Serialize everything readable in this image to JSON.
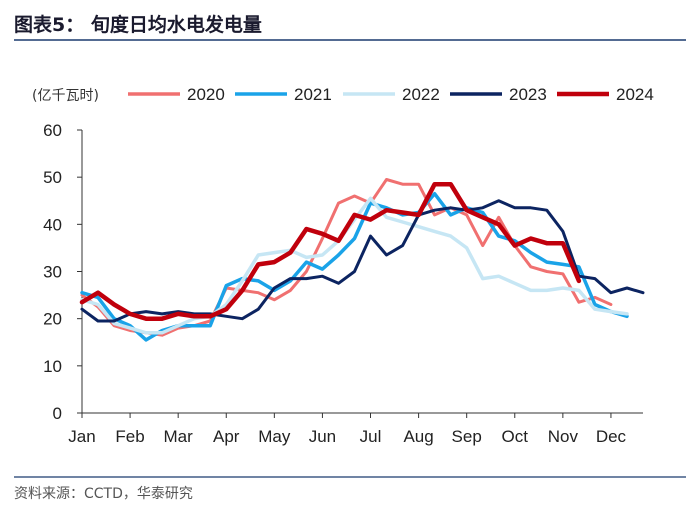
{
  "header": {
    "title": "图表5：  旬度日均水电发电量"
  },
  "source": "资料来源：CCTD，华泰研究",
  "chart_data": {
    "type": "line",
    "unit_label": "(亿千瓦时)",
    "ylim": [
      0,
      60
    ],
    "yticks": [
      "0",
      "10",
      "20",
      "30",
      "40",
      "50",
      "60"
    ],
    "month_labels": [
      "Jan",
      "Feb",
      "Mar",
      "Apr",
      "May",
      "Jun",
      "Jul",
      "Aug",
      "Sep",
      "Oct",
      "Nov",
      "Dec"
    ],
    "x_count": 36,
    "series": [
      {
        "name": "2020",
        "color": "#f07070",
        "width": 3,
        "values": [
          25.0,
          22.5,
          18.5,
          17.5,
          17.0,
          16.5,
          18.0,
          18.5,
          19.5,
          26.5,
          26.0,
          25.5,
          24.0,
          26.0,
          30.0,
          37.0,
          44.5,
          46.0,
          44.5,
          49.5,
          48.5,
          48.5,
          42.0,
          43.5,
          42.0,
          35.5,
          41.5,
          35.5,
          31.0,
          30.0,
          29.5,
          23.5,
          24.5,
          23.0
        ]
      },
      {
        "name": "2021",
        "color": "#1aa3e8",
        "width": 3.5,
        "values": [
          25.5,
          24.5,
          20.0,
          18.5,
          15.5,
          17.5,
          18.5,
          18.5,
          18.5,
          27.0,
          28.5,
          28.0,
          26.0,
          28.0,
          32.0,
          30.5,
          33.5,
          37.0,
          44.5,
          43.5,
          42.0,
          42.5,
          46.5,
          42.0,
          43.5,
          42.5,
          37.5,
          36.5,
          34.0,
          32.0,
          31.5,
          31.0,
          23.0,
          21.5,
          20.5
        ]
      },
      {
        "name": "2022",
        "color": "#c6e6f4",
        "width": 3.5,
        "values": [
          24.0,
          23.0,
          19.0,
          18.0,
          17.0,
          17.0,
          18.5,
          20.0,
          20.5,
          23.0,
          28.0,
          33.5,
          34.0,
          34.5,
          33.0,
          33.5,
          36.5,
          41.0,
          45.5,
          41.5,
          40.5,
          39.5,
          38.5,
          37.5,
          35.0,
          28.5,
          29.0,
          27.5,
          26.0,
          26.0,
          26.5,
          26.0,
          22.0,
          21.5,
          21.0
        ]
      },
      {
        "name": "2023",
        "color": "#0c2461",
        "width": 3,
        "values": [
          22.0,
          19.5,
          19.5,
          21.0,
          21.5,
          21.0,
          21.5,
          21.0,
          21.0,
          20.5,
          20.0,
          22.0,
          26.5,
          28.5,
          28.5,
          29.0,
          27.5,
          30.0,
          37.5,
          33.5,
          35.5,
          42.0,
          43.0,
          43.5,
          43.0,
          43.5,
          45.0,
          43.5,
          43.5,
          43.0,
          38.5,
          29.0,
          28.5,
          25.5,
          26.5,
          25.5
        ]
      },
      {
        "name": "2024",
        "color": "#c0000c",
        "width": 4.5,
        "values": [
          23.5,
          25.5,
          23.0,
          21.0,
          20.0,
          20.0,
          21.0,
          20.5,
          20.5,
          22.0,
          26.0,
          31.5,
          32.0,
          34.0,
          39.0,
          38.0,
          36.5,
          42.0,
          41.0,
          43.0,
          42.5,
          42.0,
          48.5,
          48.5,
          43.0,
          41.5,
          40.0,
          35.5,
          37.0,
          36.0,
          36.0,
          28.0
        ]
      }
    ]
  }
}
